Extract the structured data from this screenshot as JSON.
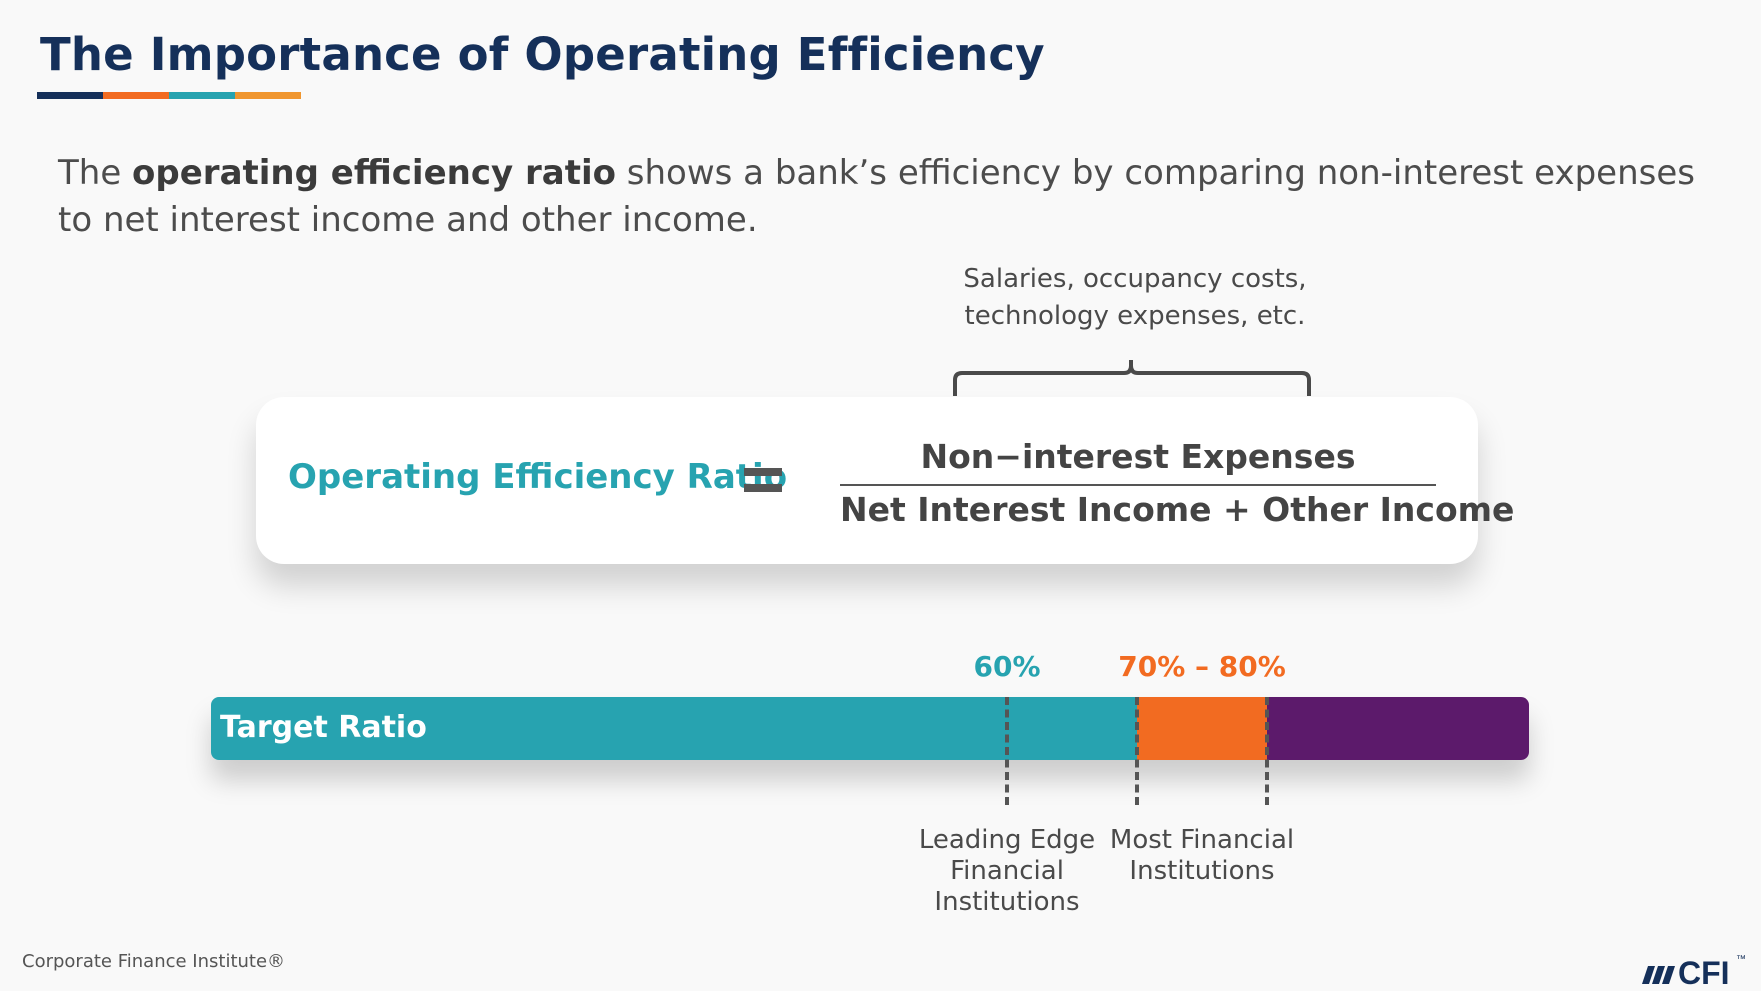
{
  "title": "The Importance of Operating Efficiency",
  "title_rule_colors": [
    "#15305a",
    "#f26b21",
    "#27a3b0",
    "#f0962f"
  ],
  "intro": {
    "before": "The ",
    "bold": "operating efficiency ratio",
    "after": " shows a bank’s efficiency by comparing non-interest expenses to net interest income and other income."
  },
  "annotation": {
    "line1": "Salaries, occupancy costs,",
    "line2": "technology expenses, etc."
  },
  "formula": {
    "lhs": "Operating Efficiency Ratio",
    "numerator": "Non−interest Expenses",
    "denominator": "Net Interest Income + Other Income"
  },
  "bar": {
    "label": "Target Ratio",
    "max_percent": 100,
    "segments": [
      {
        "name": "to-70",
        "from": 0,
        "to": 70,
        "color": "#27a3b0"
      },
      {
        "name": "70-80",
        "from": 70,
        "to": 80,
        "color": "#f26b21"
      },
      {
        "name": "80-100",
        "from": 80,
        "to": 100,
        "color": "#5c1a6b"
      }
    ],
    "markers": [
      {
        "name": "leading-edge",
        "value": 60,
        "label": "60%",
        "label_color": "#27a3b0",
        "lines": [
          "Leading Edge",
          "Financial",
          "Institutions"
        ]
      },
      {
        "name": "most-fi",
        "value": 75,
        "label": "70% – 80%",
        "label_color": "#f26b21",
        "lines": [
          "Most Financial",
          "Institutions"
        ]
      }
    ],
    "boundary_ticks": [
      70,
      80
    ]
  },
  "footer": "Corporate Finance Institute®",
  "logo": {
    "text": "CFI",
    "tm": "™",
    "color": "#15305a"
  }
}
